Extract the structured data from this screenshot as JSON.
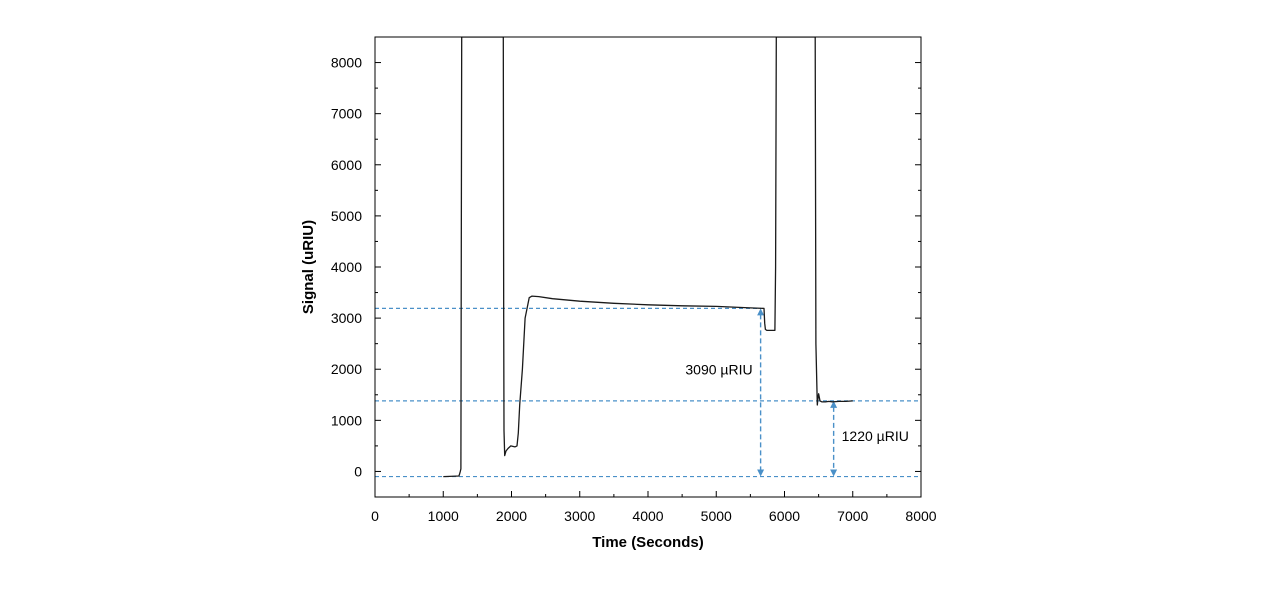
{
  "chart_data": {
    "type": "line",
    "title": "",
    "xlabel": "Time (Seconds)",
    "ylabel": "Signal (uRIU)",
    "xlim": [
      0,
      8000
    ],
    "ylim": [
      -500,
      8500
    ],
    "xticks": [
      0,
      1000,
      2000,
      3000,
      4000,
      5000,
      6000,
      7000,
      8000
    ],
    "yticks": [
      0,
      1000,
      2000,
      3000,
      4000,
      5000,
      6000,
      7000,
      8000
    ],
    "grid": false,
    "legend": "none",
    "colors": {
      "series": "#1a1a1a",
      "annotation": "#4a90c8"
    },
    "series": [
      {
        "x": [
          1000,
          1230,
          1240,
          1250,
          1258,
          1262,
          1270,
          1280,
          1880,
          1885,
          1890,
          1900,
          1920,
          1950,
          1990,
          2050,
          2080,
          2100,
          2120,
          2160,
          2200,
          2260,
          2300,
          2400,
          2600,
          3000,
          3500,
          4000,
          4500,
          5000,
          5500,
          5700,
          5710,
          5720,
          5740,
          5860,
          5870,
          5880,
          5895,
          6450,
          6460,
          6480,
          6490,
          6500,
          6520,
          6550,
          6600,
          6650,
          6700,
          6800,
          6900,
          7000
        ],
        "y": [
          -100,
          -90,
          -50,
          0,
          50,
          2400,
          8500,
          8500,
          8500,
          3000,
          800,
          310,
          400,
          450,
          500,
          480,
          500,
          750,
          1300,
          2000,
          3000,
          3400,
          3430,
          3420,
          3380,
          3330,
          3290,
          3260,
          3240,
          3230,
          3200,
          3190,
          2900,
          2780,
          2760,
          2760,
          4000,
          8500,
          8500,
          8500,
          2500,
          1300,
          1420,
          1520,
          1380,
          1360,
          1360,
          1370,
          1360,
          1370,
          1370,
          1380
        ]
      }
    ],
    "annotations": {
      "baseline": -100,
      "level_high": 3190,
      "level_low": 1380,
      "label_high": "3090 µRIU",
      "label_low": "1220 µRIU",
      "x_high": 5650,
      "x_low": 6720
    }
  }
}
